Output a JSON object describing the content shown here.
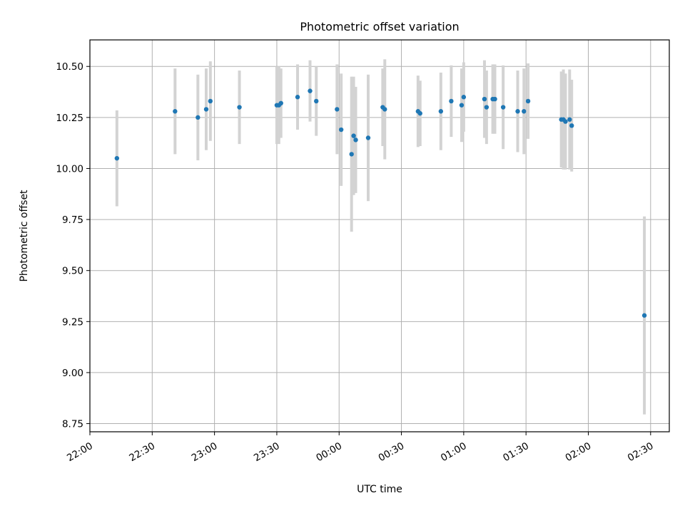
{
  "chart_data": {
    "type": "scatter",
    "title": "Photometric offset variation",
    "xlabel": "UTC time",
    "ylabel": "Photometric offset",
    "xlim": [
      "22:00",
      "02:39"
    ],
    "ylim": [
      8.71,
      10.63
    ],
    "grid": true,
    "x_tick_labels": [
      "22:00",
      "22:30",
      "23:00",
      "23:30",
      "00:00",
      "00:30",
      "01:00",
      "01:30",
      "02:00",
      "02:30"
    ],
    "y_tick_labels": [
      "8.75",
      "9.00",
      "9.25",
      "9.50",
      "9.75",
      "10.00",
      "10.25",
      "10.50"
    ],
    "y_ticks": [
      8.75,
      9.0,
      9.25,
      9.5,
      9.75,
      10.0,
      10.25,
      10.5
    ],
    "colors": {
      "point": "#1f77b4",
      "errorbar": "#d3d3d3",
      "grid": "#b0b0b0"
    },
    "points": [
      {
        "x": "22:13",
        "y": 10.05,
        "err": 0.235
      },
      {
        "x": "22:41",
        "y": 10.28,
        "err": 0.21
      },
      {
        "x": "22:52",
        "y": 10.25,
        "err": 0.21
      },
      {
        "x": "22:56",
        "y": 10.29,
        "err": 0.2
      },
      {
        "x": "22:58",
        "y": 10.33,
        "err": 0.195
      },
      {
        "x": "23:12",
        "y": 10.3,
        "err": 0.18
      },
      {
        "x": "23:30",
        "y": 10.31,
        "err": 0.19
      },
      {
        "x": "23:31",
        "y": 10.31,
        "err": 0.19
      },
      {
        "x": "23:32",
        "y": 10.32,
        "err": 0.17
      },
      {
        "x": "23:40",
        "y": 10.35,
        "err": 0.16
      },
      {
        "x": "23:46",
        "y": 10.38,
        "err": 0.15
      },
      {
        "x": "23:49",
        "y": 10.33,
        "err": 0.17
      },
      {
        "x": "23:59",
        "y": 10.29,
        "err": 0.22
      },
      {
        "x": "00:01",
        "y": 10.19,
        "err": 0.275
      },
      {
        "x": "00:06",
        "y": 10.07,
        "err": 0.38
      },
      {
        "x": "00:07",
        "y": 10.16,
        "err": 0.29
      },
      {
        "x": "00:08",
        "y": 10.14,
        "err": 0.26
      },
      {
        "x": "00:14",
        "y": 10.15,
        "err": 0.31
      },
      {
        "x": "00:21",
        "y": 10.3,
        "err": 0.19
      },
      {
        "x": "00:22",
        "y": 10.29,
        "err": 0.245
      },
      {
        "x": "00:38",
        "y": 10.28,
        "err": 0.175
      },
      {
        "x": "00:39",
        "y": 10.27,
        "err": 0.16
      },
      {
        "x": "00:49",
        "y": 10.28,
        "err": 0.19
      },
      {
        "x": "00:54",
        "y": 10.33,
        "err": 0.175
      },
      {
        "x": "00:59",
        "y": 10.31,
        "err": 0.18
      },
      {
        "x": "01:00",
        "y": 10.35,
        "err": 0.17
      },
      {
        "x": "01:10",
        "y": 10.34,
        "err": 0.19
      },
      {
        "x": "01:11",
        "y": 10.3,
        "err": 0.18
      },
      {
        "x": "01:14",
        "y": 10.34,
        "err": 0.17
      },
      {
        "x": "01:15",
        "y": 10.34,
        "err": 0.17
      },
      {
        "x": "01:19",
        "y": 10.3,
        "err": 0.205
      },
      {
        "x": "01:26",
        "y": 10.28,
        "err": 0.2
      },
      {
        "x": "01:29",
        "y": 10.28,
        "err": 0.21
      },
      {
        "x": "01:31",
        "y": 10.33,
        "err": 0.185
      },
      {
        "x": "01:47",
        "y": 10.24,
        "err": 0.235
      },
      {
        "x": "01:48",
        "y": 10.24,
        "err": 0.245
      },
      {
        "x": "01:49",
        "y": 10.23,
        "err": 0.235
      },
      {
        "x": "01:51",
        "y": 10.24,
        "err": 0.245
      },
      {
        "x": "01:52",
        "y": 10.21,
        "err": 0.225
      },
      {
        "x": "02:27",
        "y": 9.28,
        "err": 0.485
      }
    ]
  }
}
